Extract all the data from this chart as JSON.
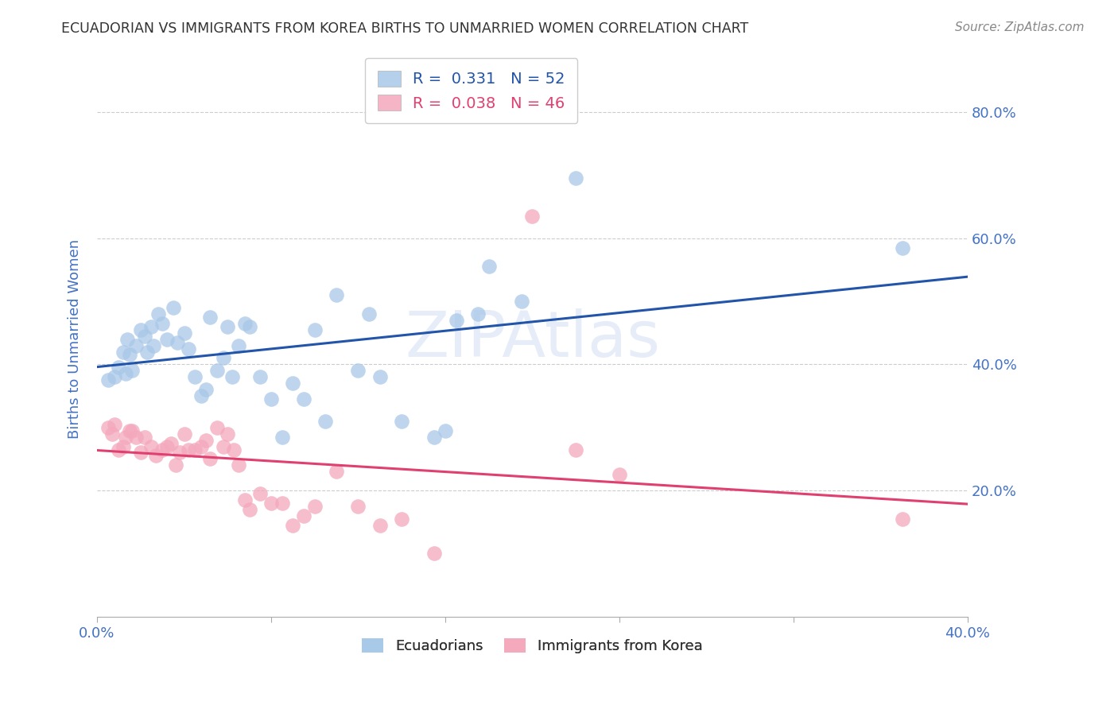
{
  "title": "ECUADORIAN VS IMMIGRANTS FROM KOREA BIRTHS TO UNMARRIED WOMEN CORRELATION CHART",
  "source": "Source: ZipAtlas.com",
  "ylabel": "Births to Unmarried Women",
  "xlim": [
    0.0,
    0.4
  ],
  "ylim": [
    0.0,
    0.88
  ],
  "yticks": [
    0.2,
    0.4,
    0.6,
    0.8
  ],
  "ytick_labels": [
    "20.0%",
    "40.0%",
    "60.0%",
    "80.0%"
  ],
  "legend_blue_r": "R =  0.331",
  "legend_blue_n": "N = 52",
  "legend_pink_r": "R =  0.038",
  "legend_pink_n": "N = 46",
  "blue_color": "#a8c8e8",
  "pink_color": "#f4a8bc",
  "line_blue_color": "#2255aa",
  "line_pink_color": "#e04070",
  "watermark": "ZIPAtlas",
  "blue_scatter_x": [
    0.005,
    0.008,
    0.01,
    0.012,
    0.013,
    0.014,
    0.015,
    0.016,
    0.018,
    0.02,
    0.022,
    0.023,
    0.025,
    0.026,
    0.028,
    0.03,
    0.032,
    0.035,
    0.037,
    0.04,
    0.042,
    0.045,
    0.048,
    0.05,
    0.052,
    0.055,
    0.058,
    0.06,
    0.062,
    0.065,
    0.068,
    0.07,
    0.075,
    0.08,
    0.085,
    0.09,
    0.095,
    0.1,
    0.105,
    0.11,
    0.12,
    0.125,
    0.13,
    0.14,
    0.155,
    0.16,
    0.165,
    0.175,
    0.18,
    0.195,
    0.22,
    0.37
  ],
  "blue_scatter_y": [
    0.375,
    0.38,
    0.395,
    0.42,
    0.385,
    0.44,
    0.415,
    0.39,
    0.43,
    0.455,
    0.445,
    0.42,
    0.46,
    0.43,
    0.48,
    0.465,
    0.44,
    0.49,
    0.435,
    0.45,
    0.425,
    0.38,
    0.35,
    0.36,
    0.475,
    0.39,
    0.41,
    0.46,
    0.38,
    0.43,
    0.465,
    0.46,
    0.38,
    0.345,
    0.285,
    0.37,
    0.345,
    0.455,
    0.31,
    0.51,
    0.39,
    0.48,
    0.38,
    0.31,
    0.285,
    0.295,
    0.47,
    0.48,
    0.555,
    0.5,
    0.695,
    0.585
  ],
  "pink_scatter_x": [
    0.005,
    0.007,
    0.008,
    0.01,
    0.012,
    0.013,
    0.015,
    0.016,
    0.018,
    0.02,
    0.022,
    0.025,
    0.027,
    0.03,
    0.032,
    0.034,
    0.036,
    0.038,
    0.04,
    0.042,
    0.045,
    0.048,
    0.05,
    0.052,
    0.055,
    0.058,
    0.06,
    0.063,
    0.065,
    0.068,
    0.07,
    0.075,
    0.08,
    0.085,
    0.09,
    0.095,
    0.1,
    0.11,
    0.12,
    0.13,
    0.14,
    0.155,
    0.2,
    0.22,
    0.24,
    0.37
  ],
  "pink_scatter_y": [
    0.3,
    0.29,
    0.305,
    0.265,
    0.27,
    0.285,
    0.295,
    0.295,
    0.285,
    0.26,
    0.285,
    0.27,
    0.255,
    0.265,
    0.27,
    0.275,
    0.24,
    0.26,
    0.29,
    0.265,
    0.265,
    0.27,
    0.28,
    0.25,
    0.3,
    0.27,
    0.29,
    0.265,
    0.24,
    0.185,
    0.17,
    0.195,
    0.18,
    0.18,
    0.145,
    0.16,
    0.175,
    0.23,
    0.175,
    0.145,
    0.155,
    0.1,
    0.635,
    0.265,
    0.225,
    0.155
  ],
  "background_color": "#ffffff",
  "grid_color": "#cccccc",
  "title_color": "#333333",
  "tick_label_color": "#4472c4",
  "legend_label_blue": "Ecuadorians",
  "legend_label_pink": "Immigrants from Korea"
}
